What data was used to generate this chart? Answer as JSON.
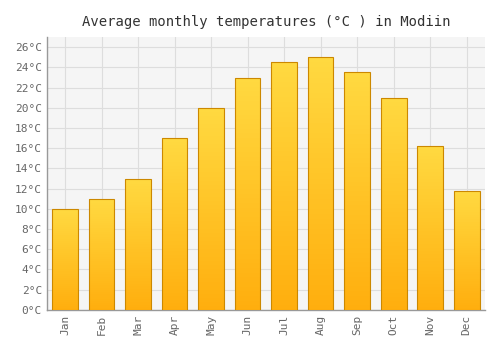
{
  "title": "Average monthly temperatures (°C ) in Modiin",
  "months": [
    "Jan",
    "Feb",
    "Mar",
    "Apr",
    "May",
    "Jun",
    "Jul",
    "Aug",
    "Sep",
    "Oct",
    "Nov",
    "Dec"
  ],
  "temperatures": [
    10.0,
    11.0,
    13.0,
    17.0,
    20.0,
    23.0,
    24.5,
    25.0,
    23.5,
    21.0,
    16.2,
    11.8
  ],
  "bar_color_top": "#FFD040",
  "bar_color_bottom": "#FFA800",
  "bar_color_edge": "#CC8800",
  "ylim": [
    0,
    27
  ],
  "yticks": [
    0,
    2,
    4,
    6,
    8,
    10,
    12,
    14,
    16,
    18,
    20,
    22,
    24,
    26
  ],
  "ytick_labels": [
    "0°C",
    "2°C",
    "4°C",
    "6°C",
    "8°C",
    "10°C",
    "12°C",
    "14°C",
    "16°C",
    "18°C",
    "20°C",
    "22°C",
    "24°C",
    "26°C"
  ],
  "background_color": "#FFFFFF",
  "plot_bg_color": "#F5F5F5",
  "grid_color": "#DDDDDD",
  "title_fontsize": 10,
  "tick_fontsize": 8,
  "font_family": "monospace"
}
